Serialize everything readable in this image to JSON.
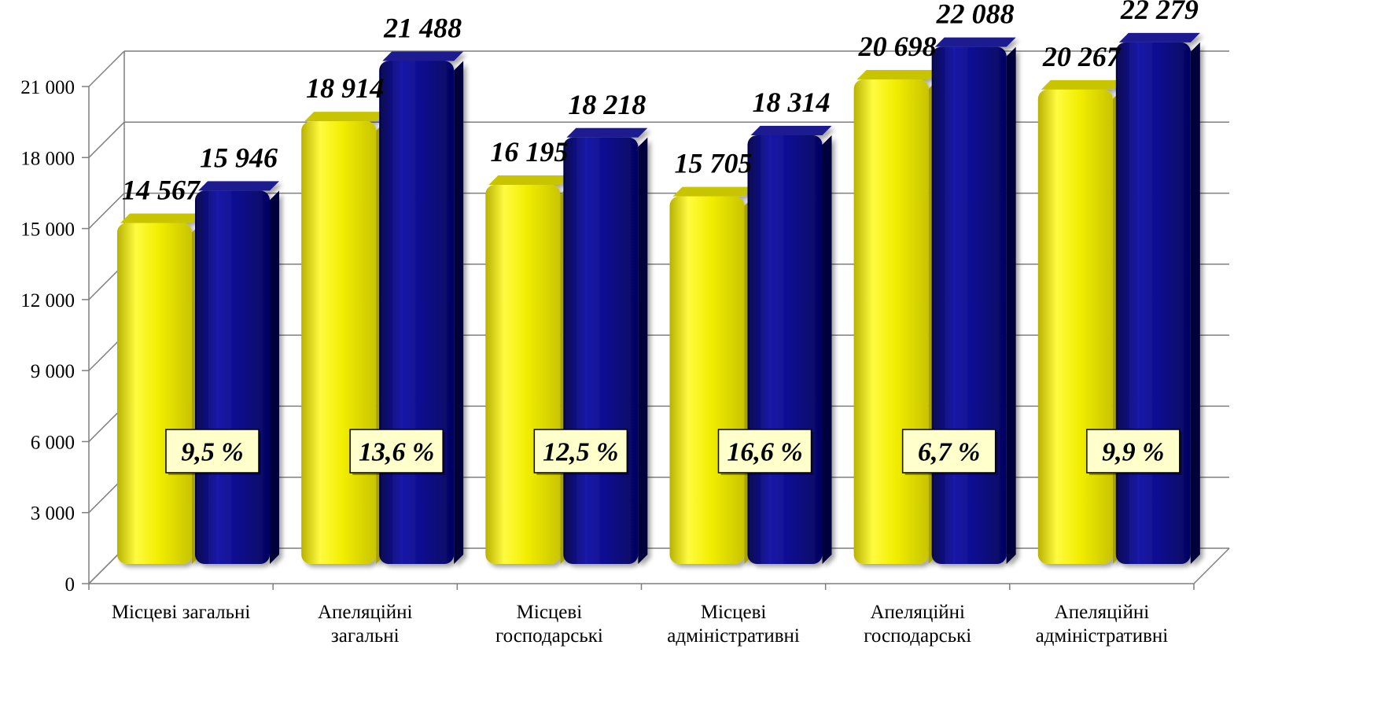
{
  "chart_data": {
    "type": "bar",
    "categories": [
      [
        "Місцеві загальні"
      ],
      [
        "Апеляційні",
        "загальні"
      ],
      [
        "Місцеві",
        "господарські"
      ],
      [
        "Місцеві",
        "адміністративні"
      ],
      [
        "Апеляційні",
        "господарські"
      ],
      [
        "Апеляційні",
        "адміністративні"
      ]
    ],
    "series": [
      {
        "values": [
          14567,
          18914,
          16195,
          15705,
          20698,
          20267
        ],
        "labels": [
          "14 567",
          "18 914",
          "16 195",
          "15 705",
          "20 698",
          "20 267"
        ],
        "color": "#f5f000"
      },
      {
        "values": [
          15946,
          21488,
          18218,
          18314,
          22088,
          22279
        ],
        "labels": [
          "15 946",
          "21 488",
          "18 218",
          "18 314",
          "22 088",
          "22 279"
        ],
        "color": "#0a0a8a"
      }
    ],
    "annotations": [
      "9,5 %",
      "13,6 %",
      "12,5 %",
      "16,6 %",
      "6,7 %",
      "9,9 %"
    ],
    "ylim": [
      0,
      21000
    ],
    "yticks": [
      0,
      3000,
      6000,
      9000,
      12000,
      15000,
      18000,
      21000
    ],
    "ytick_labels": [
      "0",
      "3 000",
      "6 000",
      "9 000",
      "12 000",
      "15 000",
      "18 000",
      "21 000"
    ],
    "grid": true,
    "annotation_box_color": "#ffffcc"
  }
}
